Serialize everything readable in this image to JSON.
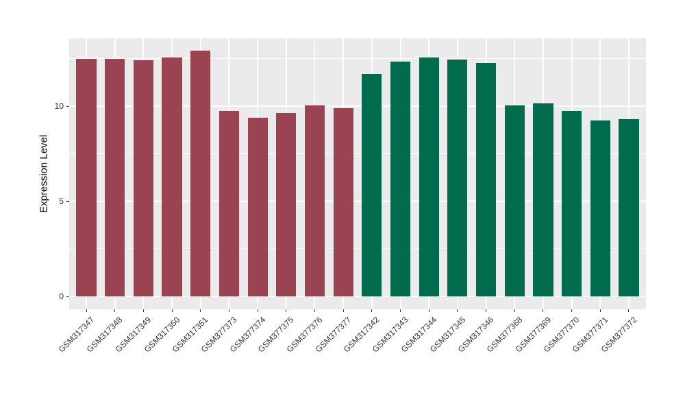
{
  "chart_data": {
    "type": "bar",
    "title": "",
    "xlabel": "",
    "ylabel": "Expression Level",
    "ylim": [
      0,
      13.56
    ],
    "yticks": [
      0,
      5,
      10
    ],
    "ytick_labels": [
      "0",
      "5",
      "10"
    ],
    "minor_gridlines": [
      2.5,
      7.5,
      12.5
    ],
    "grid": true,
    "legend_position": "none",
    "categories": [
      "GSM317347",
      "GSM317348",
      "GSM317349",
      "GSM317350",
      "GSM317351",
      "GSM377373",
      "GSM377374",
      "GSM377375",
      "GSM377376",
      "GSM377377",
      "GSM317342",
      "GSM317343",
      "GSM317344",
      "GSM317345",
      "GSM317346",
      "GSM377368",
      "GSM377369",
      "GSM377370",
      "GSM377371",
      "GSM377372"
    ],
    "values": [
      12.5,
      12.48,
      12.4,
      12.55,
      12.9,
      9.75,
      9.4,
      9.65,
      10.05,
      9.9,
      11.7,
      12.35,
      12.55,
      12.45,
      12.25,
      10.05,
      10.15,
      9.75,
      9.25,
      9.3
    ],
    "bar_groups": [
      "group1",
      "group1",
      "group1",
      "group1",
      "group1",
      "group1",
      "group1",
      "group1",
      "group1",
      "group1",
      "group2",
      "group2",
      "group2",
      "group2",
      "group2",
      "group2",
      "group2",
      "group2",
      "group2",
      "group2"
    ],
    "group_colors": {
      "group1": "#9A4452",
      "group2": "#006B4D"
    },
    "panel_background": "#EBEBEB",
    "gridline_color": "#FFFFFF",
    "tick_color": "#333333",
    "axis_text_color": "#303030"
  }
}
